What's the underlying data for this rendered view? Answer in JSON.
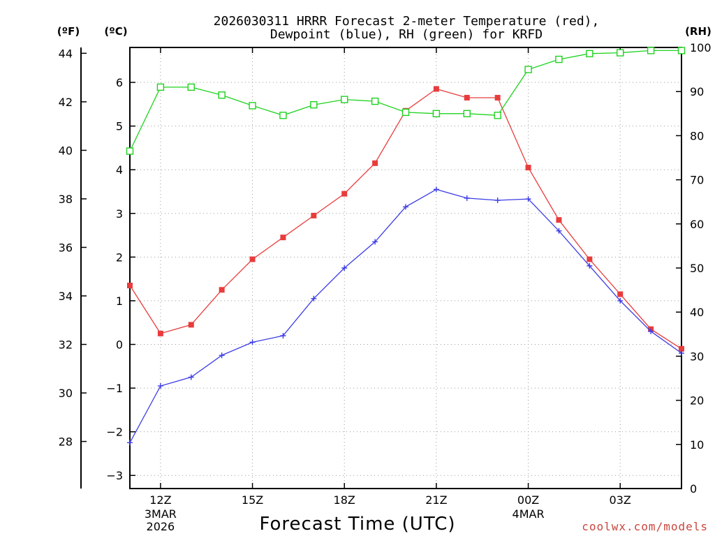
{
  "chart_data": {
    "type": "line",
    "title": "2026030311 HRRR Forecast 2-meter Temperature (red), Dewpoint (blue), RH (green) for KRFD",
    "title_lines": [
      "2026030311 HRRR Forecast 2-meter Temperature (red),",
      "Dewpoint (blue), RH (green) for KRFD"
    ],
    "xlabel": "Forecast Time (UTC)",
    "credit": "coolwx.com/models",
    "y_left_title": "(ºC)",
    "y_far_left_title": "(ºF)",
    "y_right_title": "(RH)",
    "x_hours": [
      0,
      1,
      2,
      3,
      4,
      5,
      6,
      7,
      8,
      9,
      10,
      11,
      12,
      13,
      14,
      15,
      16,
      17,
      18
    ],
    "x_range": [
      0,
      18
    ],
    "x_ticks": [
      {
        "h": 1,
        "label": "12Z",
        "sub": [
          "3MAR",
          "2026"
        ]
      },
      {
        "h": 4,
        "label": "15Z",
        "sub": []
      },
      {
        "h": 7,
        "label": "18Z",
        "sub": []
      },
      {
        "h": 10,
        "label": "21Z",
        "sub": []
      },
      {
        "h": 13,
        "label": "00Z",
        "sub": [
          "4MAR"
        ]
      },
      {
        "h": 16,
        "label": "03Z",
        "sub": []
      }
    ],
    "celsius_range": [
      -3.3,
      6.8
    ],
    "celsius_ticks": [
      -3,
      -2,
      -1,
      0,
      1,
      2,
      3,
      4,
      5,
      6
    ],
    "fahrenheit_ticks": [
      28,
      30,
      32,
      34,
      36,
      38,
      40,
      42,
      44
    ],
    "rh_range": [
      0,
      100
    ],
    "rh_ticks": [
      0,
      10,
      20,
      30,
      40,
      50,
      60,
      70,
      80,
      90,
      100
    ],
    "series": [
      {
        "name": "Temperature",
        "units": "C",
        "axis": "celsius",
        "color": "#e83c3c",
        "marker": "filled-square",
        "values": [
          1.35,
          0.25,
          0.45,
          1.25,
          1.95,
          2.45,
          2.95,
          3.45,
          4.15,
          5.35,
          5.85,
          5.65,
          5.65,
          4.05,
          2.85,
          1.95,
          1.15,
          0.35,
          -0.1
        ]
      },
      {
        "name": "Dewpoint",
        "units": "C",
        "axis": "celsius",
        "color": "#3c3ce6",
        "marker": "plus",
        "values": [
          -2.25,
          -0.95,
          -0.75,
          -0.25,
          0.05,
          0.2,
          1.05,
          1.75,
          2.35,
          3.15,
          3.55,
          3.35,
          3.3,
          3.33,
          2.6,
          1.8,
          1.0,
          0.3,
          -0.2
        ]
      },
      {
        "name": "RH",
        "units": "%",
        "axis": "rh",
        "color": "#1ed21e",
        "marker": "open-square",
        "values": [
          76.5,
          91.0,
          91.0,
          89.2,
          86.8,
          84.6,
          87.0,
          88.2,
          87.8,
          85.3,
          85.0,
          85.0,
          84.6,
          95.0,
          97.3,
          98.6,
          98.8,
          99.3,
          99.3
        ]
      }
    ]
  }
}
